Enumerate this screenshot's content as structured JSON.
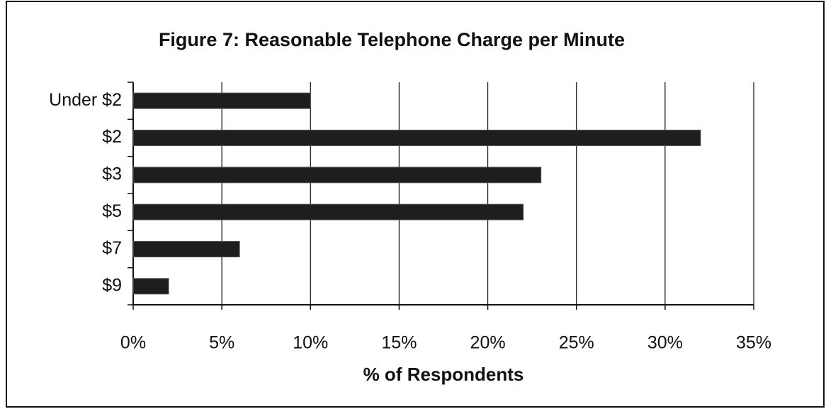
{
  "chart_data": {
    "type": "bar",
    "orientation": "horizontal",
    "title": "Figure 7: Reasonable Telephone Charge per Minute",
    "categories": [
      "Under $2",
      "$2",
      "$3",
      "$5",
      "$7",
      "$9"
    ],
    "values": [
      10,
      32,
      23,
      22,
      6,
      2
    ],
    "color": "#1e1e1e",
    "xlabel": "% of Respondents",
    "xlim": [
      0,
      35
    ],
    "xticks": [
      {
        "value": 0,
        "label": "0%"
      },
      {
        "value": 5,
        "label": "5%"
      },
      {
        "value": 10,
        "label": "10%"
      },
      {
        "value": 15,
        "label": "15%"
      },
      {
        "value": 20,
        "label": "20%"
      },
      {
        "value": 25,
        "label": "25%"
      },
      {
        "value": 30,
        "label": "30%"
      },
      {
        "value": 35,
        "label": "35%"
      }
    ],
    "grid": true
  }
}
